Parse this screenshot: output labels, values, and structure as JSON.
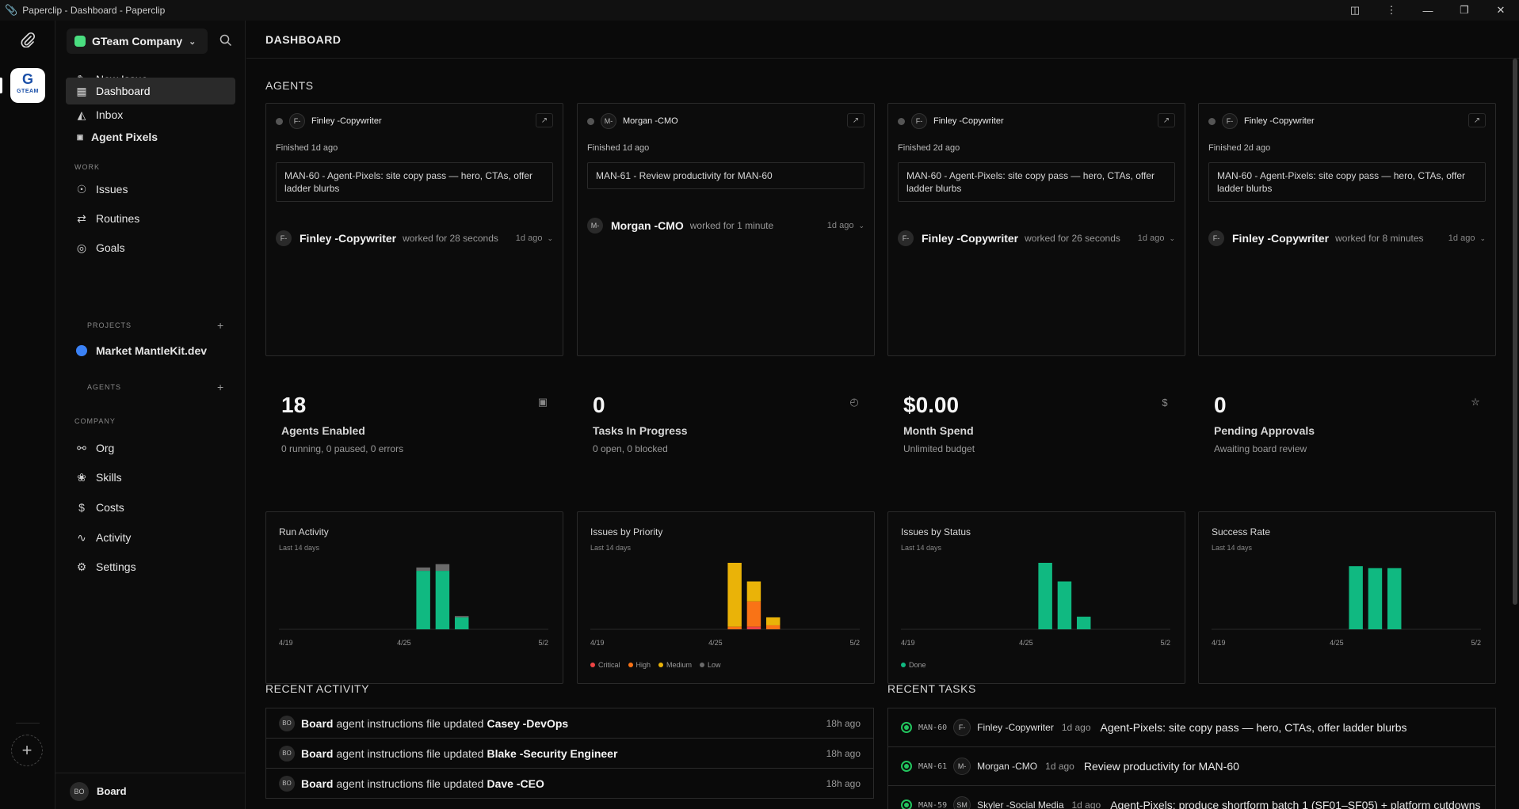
{
  "window": {
    "title": "Paperclip - Dashboard - Paperclip"
  },
  "rail": {
    "logo_text": "G",
    "logo_sub": "GTEAM"
  },
  "sidebar": {
    "company": "GTeam Company",
    "items": [
      {
        "label": "New Issue",
        "icon": "edit-icon"
      },
      {
        "label": "Dashboard",
        "icon": "dashboard-icon",
        "active": true
      },
      {
        "label": "Inbox",
        "icon": "inbox-icon"
      },
      {
        "label": "Agent Pixels",
        "icon": "square-icon"
      }
    ],
    "work_label": "WORK",
    "work_items": [
      {
        "label": "Issues",
        "icon": "circle-dot-icon"
      },
      {
        "label": "Routines",
        "icon": "repeat-icon"
      },
      {
        "label": "Goals",
        "icon": "target-icon"
      }
    ],
    "projects_label": "PROJECTS",
    "projects": [
      {
        "label": "Market MantleKit.dev",
        "color": "#3b82f6"
      }
    ],
    "agents_label": "AGENTS",
    "company_label": "COMPANY",
    "company_items": [
      {
        "label": "Org",
        "icon": "org-icon"
      },
      {
        "label": "Skills",
        "icon": "skills-icon"
      },
      {
        "label": "Costs",
        "icon": "dollar-icon"
      },
      {
        "label": "Activity",
        "icon": "activity-icon"
      },
      {
        "label": "Settings",
        "icon": "gear-icon"
      }
    ],
    "user": {
      "initials": "BO",
      "name": "Board"
    }
  },
  "page": {
    "title": "DASHBOARD",
    "agents_heading": "AGENTS",
    "recent_activity_heading": "RECENT ACTIVITY",
    "recent_tasks_heading": "RECENT TASKS"
  },
  "agents": [
    {
      "initials": "F-",
      "name": "Finley -Copywriter",
      "finished": "Finished 1d ago",
      "task": "MAN-60 - Agent-Pixels: site copy pass — hero, CTAs, offer ladder blurbs",
      "run_name": "Finley -Copywriter",
      "worked": "worked for 28 seconds",
      "ago": "1d ago"
    },
    {
      "initials": "M-",
      "name": "Morgan -CMO",
      "finished": "Finished 1d ago",
      "task": "MAN-61 - Review productivity for MAN-60",
      "run_name": "Morgan -CMO",
      "worked": "worked for 1 minute",
      "ago": "1d ago"
    },
    {
      "initials": "F-",
      "name": "Finley -Copywriter",
      "finished": "Finished 2d ago",
      "task": "MAN-60 - Agent-Pixels: site copy pass — hero, CTAs, offer ladder blurbs",
      "run_name": "Finley -Copywriter",
      "worked": "worked for 26 seconds",
      "ago": "1d ago"
    },
    {
      "initials": "F-",
      "name": "Finley -Copywriter",
      "finished": "Finished 2d ago",
      "task": "MAN-60 - Agent-Pixels: site copy pass — hero, CTAs, offer ladder blurbs",
      "run_name": "Finley -Copywriter",
      "worked": "worked for 8 minutes",
      "ago": "1d ago"
    }
  ],
  "metrics": [
    {
      "value": "18",
      "label": "Agents Enabled",
      "sub": "0 running, 0 paused, 0 errors",
      "icon": "bot-icon"
    },
    {
      "value": "0",
      "label": "Tasks In Progress",
      "sub": "0 open, 0 blocked",
      "icon": "clock-icon"
    },
    {
      "value": "$0.00",
      "label": "Month Spend",
      "sub": "Unlimited budget",
      "icon": "dollar-icon"
    },
    {
      "value": "0",
      "label": "Pending Approvals",
      "sub": "Awaiting board review",
      "icon": "shield-icon"
    }
  ],
  "chart_data": [
    {
      "type": "bar",
      "title": "Run Activity",
      "subtitle": "Last 14 days",
      "x_ticks": [
        "4/19",
        "4/25",
        "5/2"
      ],
      "days": 14,
      "bars": [
        {
          "day": 7,
          "stack": [
            {
              "value": 0.88,
              "color": "#10b981"
            },
            {
              "value": 0.05,
              "color": "#6b6b6b"
            }
          ]
        },
        {
          "day": 8,
          "stack": [
            {
              "value": 0.88,
              "color": "#10b981"
            },
            {
              "value": 0.1,
              "color": "#6b6b6b"
            }
          ]
        },
        {
          "day": 9,
          "stack": [
            {
              "value": 0.18,
              "color": "#10b981"
            },
            {
              "value": 0.02,
              "color": "#6b6b6b"
            }
          ]
        }
      ]
    },
    {
      "type": "bar",
      "title": "Issues by Priority",
      "subtitle": "Last 14 days",
      "x_ticks": [
        "4/19",
        "4/25",
        "5/2"
      ],
      "days": 14,
      "bars": [
        {
          "day": 7,
          "stack": [
            {
              "value": 0.04,
              "color": "#f97316"
            },
            {
              "value": 0.96,
              "color": "#eab308"
            }
          ]
        },
        {
          "day": 8,
          "stack": [
            {
              "value": 0.04,
              "color": "#ef4444"
            },
            {
              "value": 0.38,
              "color": "#f97316"
            },
            {
              "value": 0.3,
              "color": "#eab308"
            }
          ]
        },
        {
          "day": 9,
          "stack": [
            {
              "value": 0.06,
              "color": "#f97316"
            },
            {
              "value": 0.12,
              "color": "#eab308"
            }
          ]
        }
      ],
      "legend": [
        {
          "name": "Critical",
          "color": "#ef4444"
        },
        {
          "name": "High",
          "color": "#f97316"
        },
        {
          "name": "Medium",
          "color": "#eab308"
        },
        {
          "name": "Low",
          "color": "#6b6b6b"
        }
      ]
    },
    {
      "type": "bar",
      "title": "Issues by Status",
      "subtitle": "Last 14 days",
      "x_ticks": [
        "4/19",
        "4/25",
        "5/2"
      ],
      "days": 14,
      "bars": [
        {
          "day": 7,
          "stack": [
            {
              "value": 1.0,
              "color": "#10b981"
            }
          ]
        },
        {
          "day": 8,
          "stack": [
            {
              "value": 0.72,
              "color": "#10b981"
            }
          ]
        },
        {
          "day": 9,
          "stack": [
            {
              "value": 0.19,
              "color": "#10b981"
            }
          ]
        }
      ],
      "legend": [
        {
          "name": "Done",
          "color": "#10b981"
        }
      ]
    },
    {
      "type": "bar",
      "title": "Success Rate",
      "subtitle": "Last 14 days",
      "x_ticks": [
        "4/19",
        "4/25",
        "5/2"
      ],
      "days": 14,
      "bars": [
        {
          "day": 7,
          "stack": [
            {
              "value": 0.95,
              "color": "#10b981"
            }
          ]
        },
        {
          "day": 8,
          "stack": [
            {
              "value": 0.92,
              "color": "#10b981"
            }
          ]
        },
        {
          "day": 9,
          "stack": [
            {
              "value": 0.92,
              "color": "#10b981"
            }
          ]
        }
      ]
    }
  ],
  "recent_activity": [
    {
      "initials": "BO",
      "actor": "Board",
      "action": "agent instructions file updated",
      "target": "Casey -DevOps",
      "time": "18h ago"
    },
    {
      "initials": "BO",
      "actor": "Board",
      "action": "agent instructions file updated",
      "target": "Blake -Security Engineer",
      "time": "18h ago"
    },
    {
      "initials": "BO",
      "actor": "Board",
      "action": "agent instructions file updated",
      "target": "Dave -CEO",
      "time": "18h ago"
    }
  ],
  "recent_tasks": [
    {
      "id": "MAN-60",
      "initials": "F-",
      "agent": "Finley -Copywriter",
      "ago": "1d ago",
      "title": "Agent-Pixels: site copy pass — hero, CTAs, offer ladder blurbs"
    },
    {
      "id": "MAN-61",
      "initials": "M-",
      "agent": "Morgan -CMO",
      "ago": "1d ago",
      "title": "Review productivity for MAN-60"
    },
    {
      "id": "MAN-59",
      "initials": "SM",
      "agent": "Skyler -Social Media",
      "ago": "1d ago",
      "title": "Agent-Pixels: produce shortform batch 1 (SF01–SF05) + platform cutdowns"
    }
  ]
}
